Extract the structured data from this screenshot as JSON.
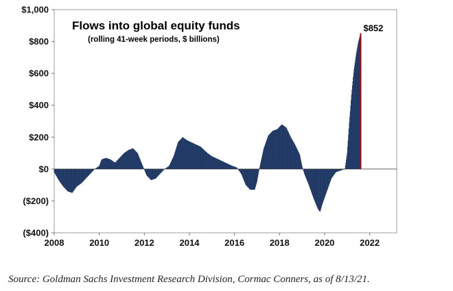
{
  "chart_data": {
    "type": "area",
    "title": "Flows into global equity funds",
    "subtitle": "(rolling 41-week periods, $ billions)",
    "xlabel": "",
    "ylabel": "",
    "xlim": [
      2008,
      2023.2
    ],
    "ylim": [
      -400,
      1000
    ],
    "x_ticks": [
      {
        "value": 2008,
        "label": "2008"
      },
      {
        "value": 2010,
        "label": "2010"
      },
      {
        "value": 2012,
        "label": "2012"
      },
      {
        "value": 2014,
        "label": "2014"
      },
      {
        "value": 2016,
        "label": "2016"
      },
      {
        "value": 2018,
        "label": "2018"
      },
      {
        "value": 2020,
        "label": "2020"
      },
      {
        "value": 2022,
        "label": "2022"
      }
    ],
    "y_ticks": [
      {
        "value": 1000,
        "label": "$1,000"
      },
      {
        "value": 800,
        "label": "$800"
      },
      {
        "value": 600,
        "label": "$600"
      },
      {
        "value": 400,
        "label": "$400"
      },
      {
        "value": 200,
        "label": "$200"
      },
      {
        "value": 0,
        "label": "$0"
      },
      {
        "value": -200,
        "label": "($200)"
      },
      {
        "value": -400,
        "label": "($400)"
      }
    ],
    "series": [
      {
        "name": "Flows into global equity funds",
        "color": "#1f3864",
        "points": [
          [
            2008.0,
            -20
          ],
          [
            2008.2,
            -70
          ],
          [
            2008.4,
            -110
          ],
          [
            2008.6,
            -140
          ],
          [
            2008.8,
            -150
          ],
          [
            2009.0,
            -110
          ],
          [
            2009.2,
            -90
          ],
          [
            2009.4,
            -60
          ],
          [
            2009.6,
            -30
          ],
          [
            2009.8,
            0
          ],
          [
            2010.0,
            20
          ],
          [
            2010.1,
            60
          ],
          [
            2010.3,
            70
          ],
          [
            2010.5,
            60
          ],
          [
            2010.7,
            40
          ],
          [
            2010.9,
            70
          ],
          [
            2011.1,
            100
          ],
          [
            2011.3,
            120
          ],
          [
            2011.5,
            130
          ],
          [
            2011.7,
            100
          ],
          [
            2011.9,
            30
          ],
          [
            2012.1,
            -40
          ],
          [
            2012.3,
            -70
          ],
          [
            2012.5,
            -60
          ],
          [
            2012.7,
            -30
          ],
          [
            2012.9,
            0
          ],
          [
            2013.1,
            20
          ],
          [
            2013.3,
            80
          ],
          [
            2013.5,
            170
          ],
          [
            2013.7,
            200
          ],
          [
            2013.9,
            180
          ],
          [
            2014.2,
            160
          ],
          [
            2014.5,
            140
          ],
          [
            2014.8,
            100
          ],
          [
            2015.0,
            80
          ],
          [
            2015.3,
            60
          ],
          [
            2015.6,
            40
          ],
          [
            2015.9,
            20
          ],
          [
            2016.1,
            10
          ],
          [
            2016.3,
            -30
          ],
          [
            2016.5,
            -100
          ],
          [
            2016.7,
            -130
          ],
          [
            2016.9,
            -130
          ],
          [
            2017.0,
            -80
          ],
          [
            2017.1,
            0
          ],
          [
            2017.3,
            130
          ],
          [
            2017.5,
            210
          ],
          [
            2017.7,
            240
          ],
          [
            2017.9,
            250
          ],
          [
            2018.1,
            280
          ],
          [
            2018.3,
            260
          ],
          [
            2018.5,
            200
          ],
          [
            2018.7,
            150
          ],
          [
            2018.9,
            90
          ],
          [
            2019.0,
            20
          ],
          [
            2019.1,
            -30
          ],
          [
            2019.3,
            -100
          ],
          [
            2019.5,
            -180
          ],
          [
            2019.7,
            -250
          ],
          [
            2019.8,
            -270
          ],
          [
            2019.9,
            -220
          ],
          [
            2020.1,
            -140
          ],
          [
            2020.3,
            -60
          ],
          [
            2020.5,
            -20
          ],
          [
            2020.7,
            -10
          ],
          [
            2020.9,
            0
          ],
          [
            2021.0,
            100
          ],
          [
            2021.1,
            300
          ],
          [
            2021.2,
            480
          ],
          [
            2021.3,
            620
          ],
          [
            2021.4,
            720
          ],
          [
            2021.5,
            800
          ],
          [
            2021.6,
            852
          ]
        ]
      }
    ],
    "annotations": [
      {
        "label": "$852",
        "x": 2021.6,
        "y": 852,
        "marker_color": "#c00000"
      }
    ]
  },
  "source_note": "Source: Goldman Sachs Investment Research Division, Cormac Conners, as of 8/13/21."
}
